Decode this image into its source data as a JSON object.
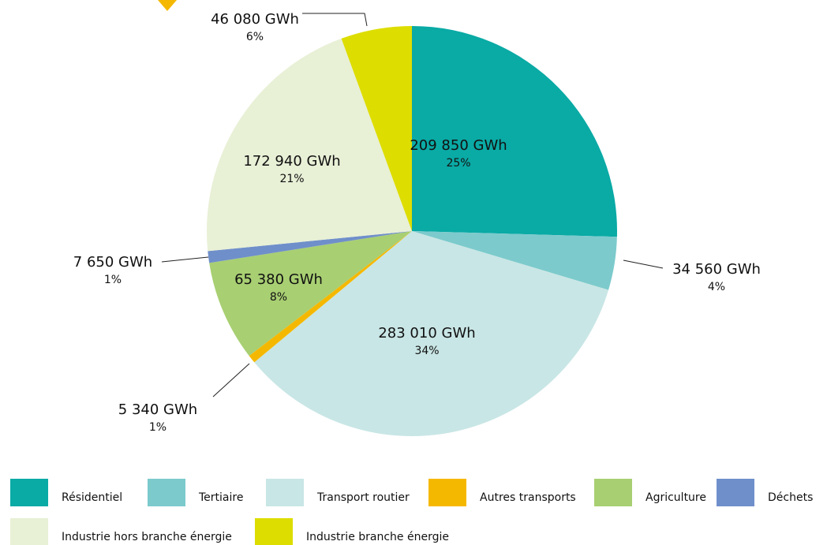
{
  "chart_data": {
    "type": "pie",
    "categories": [
      "Résidentiel",
      "Tertiaire",
      "Transport routier",
      "Autres transports",
      "Agriculture",
      "Déchets",
      "Industrie hors branche énergie",
      "Industrie branche énergie"
    ],
    "values": [
      209850,
      34560,
      283010,
      5340,
      65380,
      7650,
      172940,
      46080
    ],
    "value_labels": [
      "209 850 GWh",
      "34 560 GWh",
      "283 010 GWh",
      "5 340 GWh",
      "65 380 GWh",
      "7 650 GWh",
      "172 940 GWh",
      "46 080 GWh"
    ],
    "percent_labels": [
      "25%",
      "4%",
      "34%",
      "1%",
      "8%",
      "1%",
      "21%",
      "6%"
    ],
    "colors": [
      "#0aaaa5",
      "#7ccacc",
      "#c8e6e5",
      "#f5b800",
      "#a8cf72",
      "#6f8fca",
      "#e8f0d6",
      "#dddd00"
    ]
  }
}
